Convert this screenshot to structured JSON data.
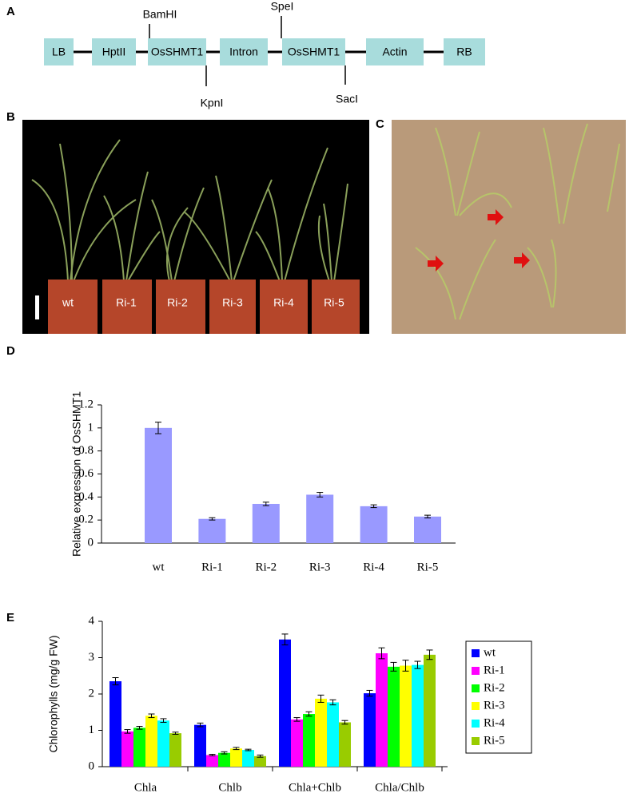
{
  "diagram": {
    "panel": "A",
    "boxes": [
      "LB",
      "HptII",
      "OsSHMT1",
      "Intron",
      "OsSHMT1",
      "Actin",
      "RB"
    ],
    "sites": [
      "BamHI",
      "SpeI",
      "KpnI",
      "SacI"
    ]
  },
  "photos": [
    {
      "panel": "B",
      "labels": [
        "wt",
        "Ri-1",
        "Ri-2",
        "Ri-3",
        "Ri-4",
        "Ri-5"
      ]
    },
    {
      "panel": "C"
    }
  ],
  "chart_data": [
    {
      "type": "bar",
      "panel": "D",
      "y_label": "Relative expression of OsSHMT1",
      "categories": [
        "wt",
        "Ri-1",
        "Ri-2",
        "Ri-3",
        "Ri-4",
        "Ri-5"
      ],
      "values": [
        1.0,
        0.21,
        0.34,
        0.42,
        0.32,
        0.23
      ],
      "errors": [
        0.05,
        0.01,
        0.015,
        0.02,
        0.012,
        0.012
      ],
      "color": "#9999ff",
      "ylim": [
        0,
        1.2
      ],
      "yticks": [
        0,
        0.2,
        0.4,
        0.6,
        0.8,
        1,
        1.2
      ],
      "grid": false
    },
    {
      "type": "grouped_bar",
      "panel": "E",
      "y_label": "Chlorophylls (mg/g FW)",
      "categories": [
        "Chla",
        "Chlb",
        "Chla+Chlb",
        "Chla/Chlb"
      ],
      "series": [
        {
          "name": "wt",
          "color": "#0000ff",
          "values": [
            2.35,
            1.15,
            3.5,
            2.02
          ],
          "errors": [
            0.1,
            0.05,
            0.15,
            0.08
          ]
        },
        {
          "name": "Ri-1",
          "color": "#ff00ff",
          "values": [
            0.97,
            0.32,
            1.3,
            3.12
          ],
          "errors": [
            0.05,
            0.02,
            0.05,
            0.15
          ]
        },
        {
          "name": "Ri-2",
          "color": "#00ff00",
          "values": [
            1.07,
            0.38,
            1.45,
            2.75
          ],
          "errors": [
            0.04,
            0.03,
            0.06,
            0.12
          ]
        },
        {
          "name": "Ri-3",
          "color": "#ffff00",
          "values": [
            1.4,
            0.5,
            1.87,
            2.78
          ],
          "errors": [
            0.05,
            0.03,
            0.1,
            0.15
          ]
        },
        {
          "name": "Ri-4",
          "color": "#00ffff",
          "values": [
            1.27,
            0.46,
            1.77,
            2.8
          ],
          "errors": [
            0.05,
            0.02,
            0.07,
            0.1
          ]
        },
        {
          "name": "Ri-5",
          "color": "#99cc00",
          "values": [
            0.92,
            0.29,
            1.22,
            3.08
          ],
          "errors": [
            0.03,
            0.03,
            0.05,
            0.13
          ]
        }
      ],
      "ylim": [
        0,
        4
      ],
      "yticks": [
        0,
        1,
        2,
        3,
        4
      ],
      "grid": false,
      "legend": "right"
    }
  ]
}
